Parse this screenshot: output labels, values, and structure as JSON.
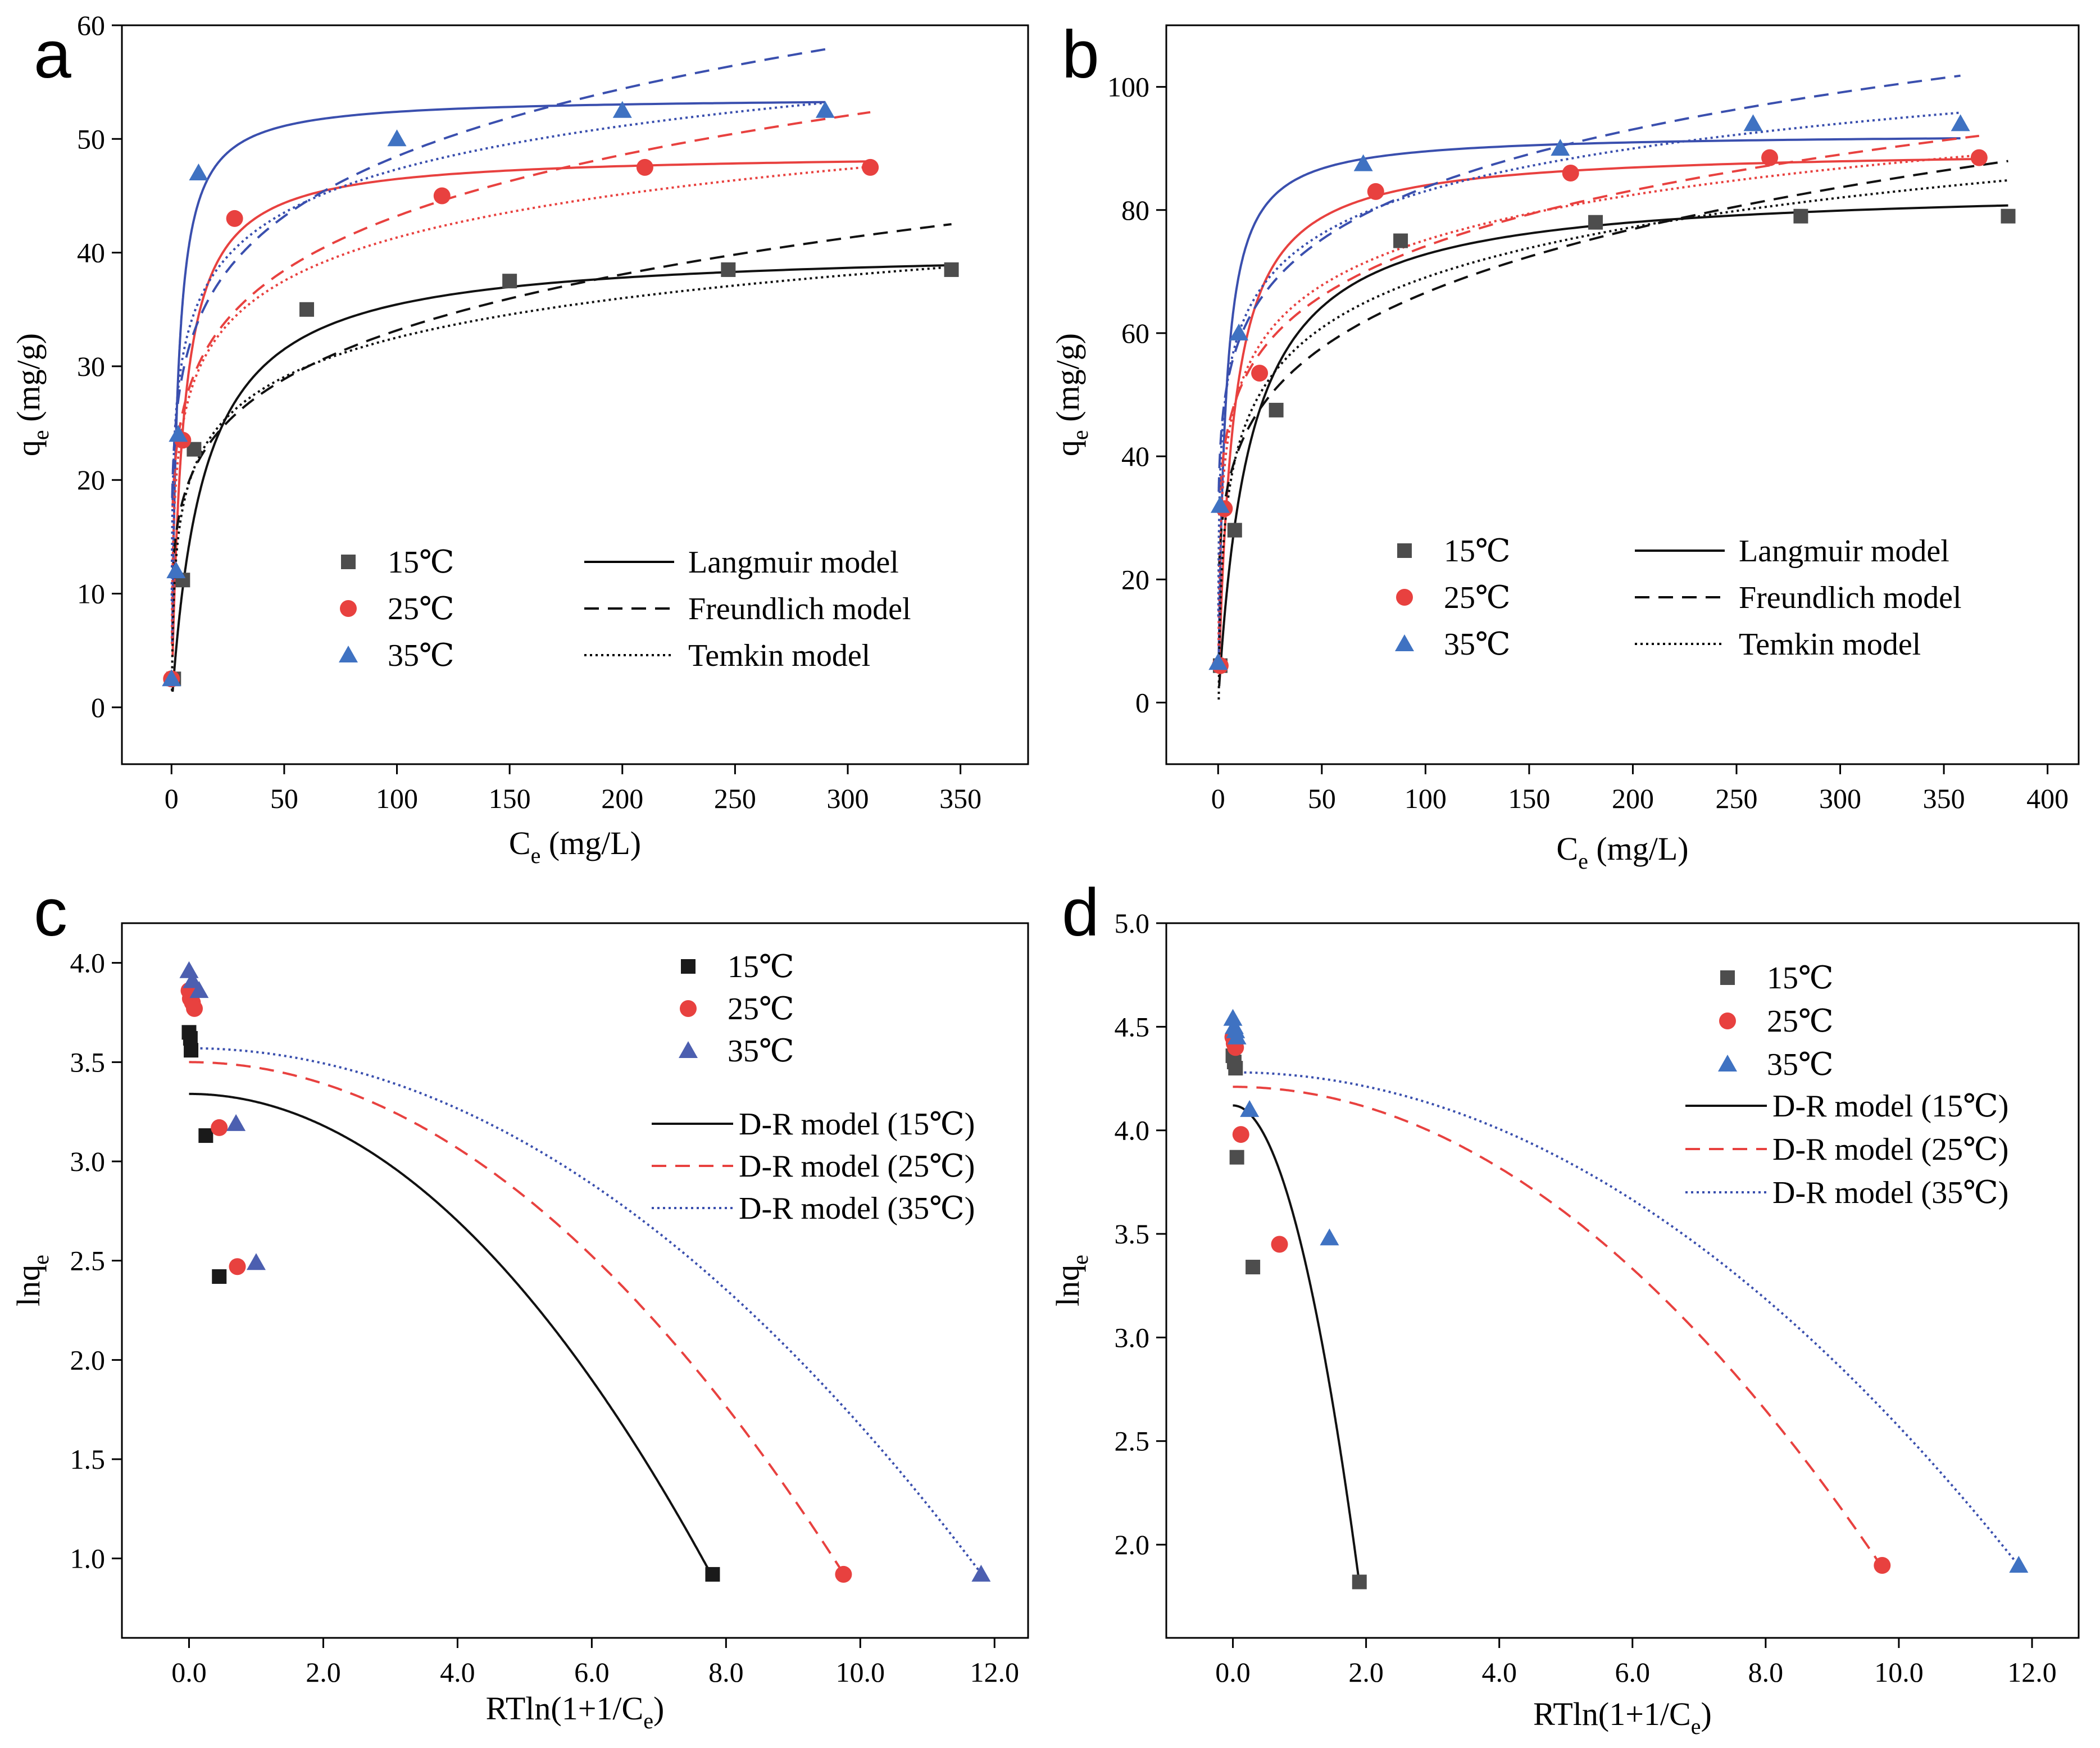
{
  "colors": {
    "s15": "#4d4d4d",
    "s15_c": "#1a1a1a",
    "s25": "#e8413f",
    "s35": "#3f72c2",
    "s35_c": "#4c5fb0",
    "line15": "#111111",
    "line25": "#e8413f",
    "line35": "#3a4fae"
  },
  "chart_data": [
    {
      "id": "a",
      "panel_label": "a",
      "type": "scatter",
      "xlabel_main": "C",
      "xlabel_sub": "e",
      "xlabel_tail": " (mg/L)",
      "ylabel_main": "q",
      "ylabel_sub": "e",
      "ylabel_tail": " (mg/g)",
      "xlim": [
        -22,
        380
      ],
      "ylim": [
        -5,
        60
      ],
      "xticks": [
        0,
        50,
        100,
        150,
        200,
        250,
        300,
        350
      ],
      "yticks": [
        0,
        10,
        20,
        30,
        40,
        50,
        60
      ],
      "series": [
        {
          "name": "15℃",
          "marker": "square",
          "color": "s15",
          "x": [
            1,
            5,
            10,
            60,
            150,
            247,
            346
          ],
          "y": [
            2.5,
            11.2,
            22.7,
            35,
            37.5,
            38.5,
            38.5
          ]
        },
        {
          "name": "25℃",
          "marker": "circle",
          "color": "s25",
          "x": [
            0,
            5,
            28,
            120,
            210,
            310
          ],
          "y": [
            2.5,
            23.5,
            43,
            45,
            47.5,
            47.5
          ]
        },
        {
          "name": "35℃",
          "marker": "triangle",
          "color": "s35",
          "x": [
            0,
            2,
            3,
            12,
            100,
            200,
            290
          ],
          "y": [
            2.5,
            12,
            24,
            47,
            50,
            52.5,
            52.5
          ]
        }
      ],
      "models": [
        {
          "name": "Langmuir model",
          "dash": "solid",
          "series": "15℃",
          "color": "line15",
          "kind": "langmuir",
          "qm": 40.5,
          "k": 0.07,
          "xmin": 0.5,
          "xmax": 346
        },
        {
          "name": "Langmuir model",
          "dash": "solid",
          "series": "25℃",
          "color": "line25",
          "kind": "langmuir",
          "qm": 48.8,
          "k": 0.2,
          "xmin": 0.5,
          "xmax": 310
        },
        {
          "name": "Langmuir model",
          "dash": "solid",
          "series": "35℃",
          "color": "line35",
          "kind": "langmuir",
          "qm": 53.7,
          "k": 0.4,
          "xmin": 0.3,
          "xmax": 290
        },
        {
          "name": "Freundlich model",
          "dash": "dashed",
          "series": "15℃",
          "color": "line15",
          "kind": "freundlich",
          "kf": 13.2,
          "n": 5.0,
          "xmin": 0.5,
          "xmax": 346
        },
        {
          "name": "Freundlich model",
          "dash": "dashed",
          "series": "25℃",
          "color": "line25",
          "kind": "freundlich",
          "kf": 19.8,
          "n": 5.9,
          "xmin": 0.5,
          "xmax": 310
        },
        {
          "name": "Freundlich model",
          "dash": "dashed",
          "series": "35℃",
          "color": "line35",
          "kind": "freundlich",
          "kf": 22.5,
          "n": 6.0,
          "xmin": 0.3,
          "xmax": 290
        },
        {
          "name": "Temkin model",
          "dash": "dotted",
          "series": "15℃",
          "color": "line15",
          "kind": "temkin",
          "a": 9.5,
          "b": 5.0,
          "xmin": 0.2,
          "xmax": 346
        },
        {
          "name": "Temkin model",
          "dash": "dotted",
          "series": "25℃",
          "color": "line25",
          "kind": "temkin",
          "a": 16.0,
          "b": 5.5,
          "xmin": 0.15,
          "xmax": 310
        },
        {
          "name": "Temkin model",
          "dash": "dotted",
          "series": "35℃",
          "color": "line35",
          "kind": "temkin",
          "a": 22.0,
          "b": 5.5,
          "xmin": 0.1,
          "xmax": 290
        }
      ],
      "legend_markers": [
        "15℃",
        "25℃",
        "35℃"
      ],
      "legend_lines": [
        {
          "label": "Langmuir model",
          "dash": "solid"
        },
        {
          "label": "Freundlich model",
          "dash": "dashed"
        },
        {
          "label": "Temkin model",
          "dash": "dotted"
        }
      ],
      "legend_placement": "bottom-center"
    },
    {
      "id": "b",
      "panel_label": "b",
      "type": "scatter",
      "xlabel_main": "C",
      "xlabel_sub": "e",
      "xlabel_tail": " (mg/L)",
      "ylabel_main": "q",
      "ylabel_sub": "e",
      "ylabel_tail": " (mg/g)",
      "xlim": [
        -25,
        415
      ],
      "ylim": [
        -10,
        110
      ],
      "xticks": [
        0,
        50,
        100,
        150,
        200,
        250,
        300,
        350,
        400
      ],
      "yticks": [
        0,
        20,
        40,
        60,
        80,
        100
      ],
      "series": [
        {
          "name": "15℃",
          "marker": "square",
          "color": "s15",
          "x": [
            1,
            8,
            28,
            88,
            182,
            281,
            381
          ],
          "y": [
            6,
            28,
            47.5,
            75,
            78,
            79,
            79
          ]
        },
        {
          "name": "25℃",
          "marker": "circle",
          "color": "s25",
          "x": [
            1,
            3,
            20,
            76,
            170,
            266,
            367
          ],
          "y": [
            6,
            31.5,
            53.5,
            83,
            86,
            88.5,
            88.5
          ]
        },
        {
          "name": "35℃",
          "marker": "triangle",
          "color": "s35",
          "x": [
            0,
            1,
            10,
            70,
            165,
            258,
            358
          ],
          "y": [
            6.5,
            32,
            60,
            87.5,
            90,
            94,
            94
          ]
        }
      ],
      "models": [
        {
          "name": "Langmuir model",
          "dash": "solid",
          "series": "15℃",
          "color": "line15",
          "kind": "langmuir",
          "qm": 84,
          "k": 0.065,
          "xmin": 0.5,
          "xmax": 381
        },
        {
          "name": "Langmuir model",
          "dash": "solid",
          "series": "25℃",
          "color": "line25",
          "kind": "langmuir",
          "qm": 90,
          "k": 0.14,
          "xmin": 0.5,
          "xmax": 367
        },
        {
          "name": "Langmuir model",
          "dash": "solid",
          "series": "35℃",
          "color": "line35",
          "kind": "langmuir",
          "qm": 92.5,
          "k": 0.3,
          "xmin": 0.3,
          "xmax": 358
        },
        {
          "name": "Freundlich model",
          "dash": "dashed",
          "series": "15℃",
          "color": "line15",
          "kind": "freundlich",
          "kf": 25.5,
          "n": 4.8,
          "xmin": 0.5,
          "xmax": 381
        },
        {
          "name": "Freundlich model",
          "dash": "dashed",
          "series": "25℃",
          "color": "line25",
          "kind": "freundlich",
          "kf": 34.4,
          "n": 6.0,
          "xmin": 0.5,
          "xmax": 367
        },
        {
          "name": "Freundlich model",
          "dash": "dashed",
          "series": "35℃",
          "color": "line35",
          "kind": "freundlich",
          "kf": 41.2,
          "n": 6.5,
          "xmin": 0.3,
          "xmax": 358
        },
        {
          "name": "Temkin model",
          "dash": "dotted",
          "series": "15℃",
          "color": "line15",
          "kind": "temkin",
          "a": 14.7,
          "b": 11.8,
          "xmin": 0.3,
          "xmax": 381
        },
        {
          "name": "Temkin model",
          "dash": "dotted",
          "series": "25℃",
          "color": "line25",
          "kind": "temkin",
          "a": 26.3,
          "b": 10.6,
          "xmin": 0.2,
          "xmax": 367
        },
        {
          "name": "Temkin model",
          "dash": "dotted",
          "series": "35℃",
          "color": "line35",
          "kind": "temkin",
          "a": 37.0,
          "b": 10.0,
          "xmin": 0.1,
          "xmax": 358
        }
      ],
      "legend_markers": [
        "15℃",
        "25℃",
        "35℃"
      ],
      "legend_lines": [
        {
          "label": "Langmuir model",
          "dash": "solid"
        },
        {
          "label": "Freundlich model",
          "dash": "dashed"
        },
        {
          "label": "Temkin model",
          "dash": "dotted"
        }
      ],
      "legend_placement": "bottom-center"
    },
    {
      "id": "c",
      "panel_label": "c",
      "type": "scatter",
      "xlabel_main": "RTln(1+1/C",
      "xlabel_sub": "e",
      "xlabel_tail": ")",
      "ylabel_main": "lnq",
      "ylabel_sub": "e",
      "ylabel_tail": "",
      "xlim": [
        -1,
        12.5
      ],
      "ylim": [
        0.6,
        4.2
      ],
      "xticks": [
        0,
        2,
        4,
        6,
        8,
        10,
        12
      ],
      "yticks": [
        1.0,
        1.5,
        2.0,
        2.5,
        3.0,
        3.5,
        4.0
      ],
      "tick_decimals": 1,
      "series": [
        {
          "name": "15℃",
          "marker": "square",
          "color": "s15_c",
          "x": [
            0,
            0.02,
            0.03,
            0.25,
            0.45,
            7.8
          ],
          "y": [
            3.65,
            3.62,
            3.56,
            3.13,
            2.42,
            0.92
          ]
        },
        {
          "name": "25℃",
          "marker": "circle",
          "color": "s25",
          "x": [
            0,
            0.02,
            0.05,
            0.08,
            0.45,
            0.72,
            9.75
          ],
          "y": [
            3.86,
            3.82,
            3.8,
            3.77,
            3.17,
            2.47,
            0.92
          ]
        },
        {
          "name": "35℃",
          "marker": "triangle",
          "color": "s35_c",
          "x": [
            0,
            0.05,
            0.15,
            0.7,
            1.0,
            11.8
          ],
          "y": [
            3.96,
            3.91,
            3.86,
            3.19,
            2.49,
            0.92
          ]
        }
      ],
      "models": [
        {
          "name": "D-R model (15℃)",
          "dash": "solid",
          "color": "line15",
          "kind": "dr",
          "q0": 3.34,
          "kb": 0.04,
          "xmin": 0,
          "xmax": 7.8
        },
        {
          "name": "D-R model (25℃)",
          "dash": "dashed",
          "color": "line25",
          "kind": "dr",
          "q0": 3.5,
          "kb": 0.0271,
          "xmin": 0,
          "xmax": 9.75
        },
        {
          "name": "D-R model (35℃)",
          "dash": "dotted",
          "color": "line35",
          "kind": "dr",
          "q0": 3.57,
          "kb": 0.019,
          "xmin": 0,
          "xmax": 11.8
        }
      ],
      "legend_markers": [
        "15℃",
        "25℃",
        "35℃"
      ],
      "legend_lines": [
        {
          "label": "D-R model (15℃)",
          "dash": "solid",
          "color": "line15"
        },
        {
          "label": "D-R model (25℃)",
          "dash": "dashed",
          "color": "line25"
        },
        {
          "label": "D-R model (35℃)",
          "dash": "dotted",
          "color": "line35"
        }
      ],
      "legend_placement": "top-right"
    },
    {
      "id": "d",
      "panel_label": "d",
      "type": "scatter",
      "xlabel_main": "RTln(1+1/C",
      "xlabel_sub": "e",
      "xlabel_tail": ")",
      "ylabel_main": "lnq",
      "ylabel_sub": "e",
      "ylabel_tail": "",
      "xlim": [
        -1,
        12.7
      ],
      "ylim": [
        1.55,
        5.0
      ],
      "xticks": [
        0,
        2,
        4,
        6,
        8,
        10,
        12
      ],
      "yticks": [
        2.0,
        2.5,
        3.0,
        3.5,
        4.0,
        4.5,
        5.0
      ],
      "tick_decimals": 1,
      "series": [
        {
          "name": "15℃",
          "marker": "square",
          "color": "s15",
          "x": [
            0,
            0.02,
            0.04,
            0.06,
            0.3,
            1.9
          ],
          "y": [
            4.36,
            4.33,
            4.3,
            3.87,
            3.34,
            1.82
          ]
        },
        {
          "name": "25℃",
          "marker": "circle",
          "color": "s25",
          "x": [
            0,
            0.02,
            0.04,
            0.12,
            0.7,
            9.75
          ],
          "y": [
            4.45,
            4.42,
            4.4,
            3.98,
            3.45,
            1.9
          ]
        },
        {
          "name": "35℃",
          "marker": "triangle",
          "color": "s35",
          "x": [
            0,
            0.02,
            0.04,
            0.06,
            0.25,
            1.45,
            11.8
          ],
          "y": [
            4.54,
            4.5,
            4.48,
            4.45,
            4.1,
            3.48,
            1.9
          ]
        }
      ],
      "models": [
        {
          "name": "D-R model (15℃)",
          "dash": "solid",
          "color": "line15",
          "kind": "dr",
          "q0": 4.12,
          "kb": 0.64,
          "xmin": 0,
          "xmax": 1.9
        },
        {
          "name": "D-R model (25℃)",
          "dash": "dashed",
          "color": "line25",
          "kind": "dr",
          "q0": 4.21,
          "kb": 0.0244,
          "xmin": 0,
          "xmax": 9.75
        },
        {
          "name": "D-R model (35℃)",
          "dash": "dotted",
          "color": "line35",
          "kind": "dr",
          "q0": 4.28,
          "kb": 0.0171,
          "xmin": 0,
          "xmax": 11.8
        }
      ],
      "legend_markers": [
        "15℃",
        "25℃",
        "35℃"
      ],
      "legend_lines": [
        {
          "label": "D-R model (15℃)",
          "dash": "solid",
          "color": "line15"
        },
        {
          "label": "D-R model (25℃)",
          "dash": "dashed",
          "color": "line25"
        },
        {
          "label": "D-R model (35℃)",
          "dash": "dotted",
          "color": "line35"
        }
      ],
      "legend_placement": "top-right"
    }
  ]
}
